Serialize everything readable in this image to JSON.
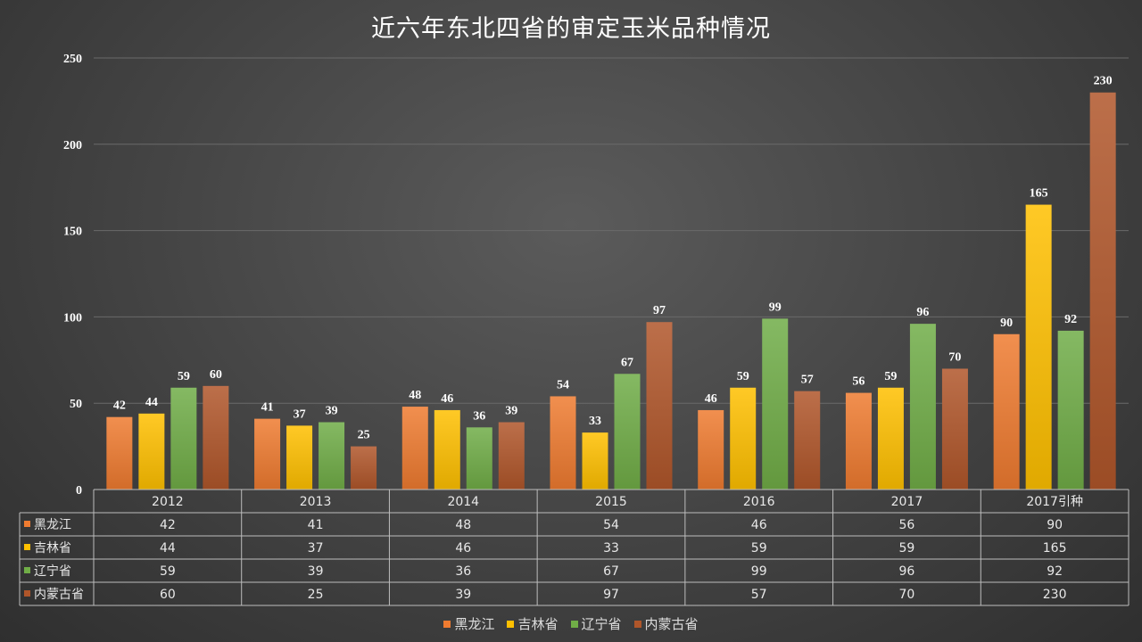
{
  "chart_data": {
    "type": "bar",
    "title": "近六年东北四省的审定玉米品种情况",
    "categories": [
      "2012",
      "2013",
      "2014",
      "2015",
      "2016",
      "2017",
      "2017引种"
    ],
    "series": [
      {
        "name": "黑龙江",
        "color": "#ef7b30",
        "values": [
          42,
          41,
          48,
          54,
          46,
          56,
          90
        ]
      },
      {
        "name": "吉林省",
        "color": "#ffc000",
        "values": [
          44,
          37,
          46,
          33,
          59,
          59,
          165
        ]
      },
      {
        "name": "辽宁省",
        "color": "#70ad47",
        "values": [
          59,
          39,
          36,
          67,
          99,
          96,
          92
        ]
      },
      {
        "name": "内蒙古省",
        "color": "#b0562a",
        "values": [
          60,
          25,
          39,
          97,
          57,
          70,
          230
        ]
      }
    ],
    "ylim": [
      0,
      250
    ],
    "yticks": [
      0,
      50,
      100,
      150,
      200,
      250
    ],
    "grid": true,
    "data_labels": true,
    "data_table": true,
    "legend_position": "bottom"
  }
}
